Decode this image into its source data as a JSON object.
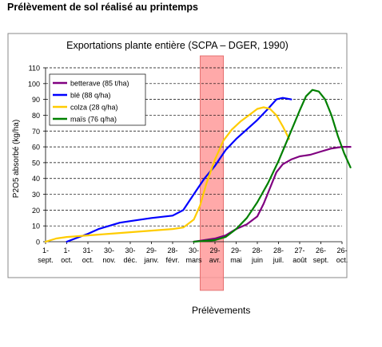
{
  "heading": "Prélèvement de sol réalisé au printemps",
  "footer_label": "Prélèvements",
  "chart_data": {
    "type": "line",
    "title": "Exportations plante entière (SCPA – DGER, 1990)",
    "xlabel": "",
    "ylabel": "P2O5 absorbé (kg/ha)",
    "ylim": [
      0,
      110
    ],
    "y_ticks": [
      0,
      10,
      20,
      30,
      40,
      50,
      60,
      70,
      80,
      90,
      100,
      110
    ],
    "grid": "horizontal dashed",
    "legend_position": "top-left",
    "x_ticks": [
      {
        "day": "1-",
        "month": "sept."
      },
      {
        "day": "1-",
        "month": "oct."
      },
      {
        "day": "31-",
        "month": "oct."
      },
      {
        "day": "30-",
        "month": "nov."
      },
      {
        "day": "30-",
        "month": "déc."
      },
      {
        "day": "29-",
        "month": "janv."
      },
      {
        "day": "28-",
        "month": "févr."
      },
      {
        "day": "30-",
        "month": "mars"
      },
      {
        "day": "29-",
        "month": "avr."
      },
      {
        "day": "29-",
        "month": "mai"
      },
      {
        "day": "28-",
        "month": "juin"
      },
      {
        "day": "28-",
        "month": "juil."
      },
      {
        "day": "27-",
        "month": "août"
      },
      {
        "day": "26-",
        "month": "sept."
      },
      {
        "day": "26-",
        "month": "oct."
      }
    ],
    "highlight_band": {
      "from_tick": 7.3,
      "to_tick": 8.4,
      "color": "#ff9a9a"
    },
    "series": [
      {
        "name": "betterave (85 t/ha)",
        "color": "#800080",
        "points": [
          [
            7.0,
            0
          ],
          [
            7.5,
            1
          ],
          [
            8.0,
            2
          ],
          [
            8.5,
            4
          ],
          [
            9.0,
            8
          ],
          [
            9.5,
            11
          ],
          [
            10.0,
            16
          ],
          [
            10.3,
            24
          ],
          [
            10.6,
            34
          ],
          [
            10.9,
            44
          ],
          [
            11.2,
            49
          ],
          [
            11.6,
            52
          ],
          [
            12.0,
            54
          ],
          [
            12.5,
            55
          ],
          [
            13.0,
            57
          ],
          [
            13.5,
            59
          ],
          [
            14.0,
            60
          ],
          [
            14.4,
            60
          ]
        ]
      },
      {
        "name": "blé (88 q/ha)",
        "color": "#0000ff",
        "points": [
          [
            1.0,
            0
          ],
          [
            1.4,
            2
          ],
          [
            2.0,
            5
          ],
          [
            2.5,
            8
          ],
          [
            3.0,
            10
          ],
          [
            3.5,
            12
          ],
          [
            4.0,
            13
          ],
          [
            5.0,
            15
          ],
          [
            6.0,
            16.5
          ],
          [
            6.5,
            20
          ],
          [
            7.0,
            30
          ],
          [
            7.5,
            40
          ],
          [
            8.0,
            48
          ],
          [
            8.5,
            58
          ],
          [
            9.0,
            65
          ],
          [
            9.5,
            71
          ],
          [
            10.0,
            77
          ],
          [
            10.5,
            84
          ],
          [
            10.9,
            90
          ],
          [
            11.2,
            91
          ],
          [
            11.6,
            90
          ]
        ]
      },
      {
        "name": "colza (28 q/ha)",
        "color": "#ffcc00",
        "points": [
          [
            0.0,
            0
          ],
          [
            0.5,
            2
          ],
          [
            1.0,
            3
          ],
          [
            2.0,
            4
          ],
          [
            3.0,
            5
          ],
          [
            4.0,
            6
          ],
          [
            5.0,
            7
          ],
          [
            6.0,
            8
          ],
          [
            6.5,
            9
          ],
          [
            7.0,
            14
          ],
          [
            7.3,
            23
          ],
          [
            7.6,
            37
          ],
          [
            8.0,
            52
          ],
          [
            8.4,
            64
          ],
          [
            8.8,
            71
          ],
          [
            9.2,
            76
          ],
          [
            9.6,
            80
          ],
          [
            10.0,
            84
          ],
          [
            10.3,
            85
          ],
          [
            10.6,
            84
          ],
          [
            10.9,
            80
          ],
          [
            11.2,
            73
          ],
          [
            11.5,
            65
          ]
        ]
      },
      {
        "name": "maïs (76 q/ha)",
        "color": "#008000",
        "points": [
          [
            7.0,
            0
          ],
          [
            7.5,
            0.5
          ],
          [
            8.0,
            1
          ],
          [
            8.5,
            3
          ],
          [
            9.0,
            8
          ],
          [
            9.5,
            15
          ],
          [
            10.0,
            25
          ],
          [
            10.5,
            37
          ],
          [
            11.0,
            51
          ],
          [
            11.5,
            67
          ],
          [
            12.0,
            83
          ],
          [
            12.3,
            92
          ],
          [
            12.6,
            96
          ],
          [
            12.9,
            95
          ],
          [
            13.2,
            90
          ],
          [
            13.5,
            80
          ],
          [
            13.8,
            67
          ],
          [
            14.1,
            56
          ],
          [
            14.4,
            47
          ]
        ]
      }
    ]
  }
}
